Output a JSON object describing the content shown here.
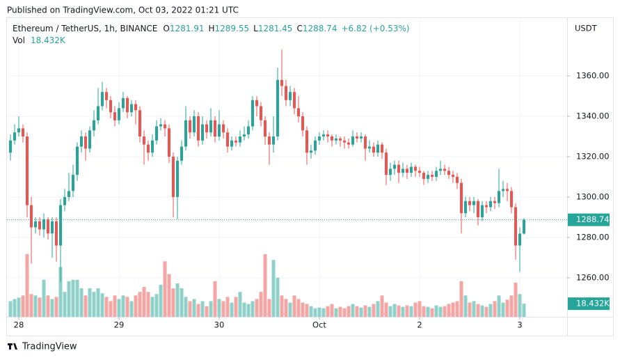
{
  "chart_data": {
    "type": "candlestick",
    "publisher": "Published on TradingView.com, Oct 03, 2022 01:21 UTC",
    "title": "Ethereum / TetherUS, 1h, BINANCE",
    "ohlc_keys": [
      "O",
      "H",
      "L",
      "C"
    ],
    "change": "+6.82 (+0.53%)",
    "volume_title": "Vol",
    "volume_label": "18.432K",
    "y_axis_label": "USDT",
    "brand": "TradingView",
    "up_color": "#26a69a",
    "down_color": "#ef5350",
    "volume_up_color": "#8fd1c9",
    "volume_down_color": "#f3a6a4",
    "grid": true,
    "ylim": [
      1240.7,
      1385.5
    ],
    "yticks": [
      {
        "value": 1260,
        "label": "1260.00"
      },
      {
        "value": 1280,
        "label": "1280.00"
      },
      {
        "value": 1300,
        "label": "1300.00"
      },
      {
        "value": 1320,
        "label": "1320.00"
      },
      {
        "value": 1340,
        "label": "1340.00"
      },
      {
        "value": 1360,
        "label": "1360.00"
      }
    ],
    "categories": [
      null,
      null,
      "28",
      null,
      null,
      null,
      null,
      null,
      null,
      null,
      null,
      null,
      null,
      null,
      null,
      null,
      null,
      null,
      null,
      null,
      null,
      null,
      null,
      null,
      null,
      null,
      "29",
      null,
      null,
      null,
      null,
      null,
      null,
      null,
      null,
      null,
      null,
      null,
      null,
      null,
      null,
      null,
      null,
      null,
      null,
      null,
      null,
      null,
      null,
      null,
      "30",
      null,
      null,
      null,
      null,
      null,
      null,
      null,
      null,
      null,
      null,
      null,
      null,
      null,
      null,
      null,
      null,
      null,
      null,
      null,
      null,
      null,
      null,
      null,
      "Oct",
      null,
      null,
      null,
      null,
      null,
      null,
      null,
      null,
      null,
      null,
      null,
      null,
      null,
      null,
      null,
      null,
      null,
      null,
      null,
      null,
      null,
      null,
      null,
      "2",
      null,
      null,
      null,
      null,
      null,
      null,
      null,
      null,
      null,
      null,
      null,
      null,
      null,
      null,
      null,
      null,
      null,
      null,
      null,
      null,
      null,
      null,
      null,
      "3",
      null
    ],
    "open": [
      1322,
      1328,
      1332,
      1334,
      1330,
      1296,
      1285,
      1288,
      1284,
      1289,
      1282,
      1288,
      1276,
      1296,
      1300,
      1303,
      1311,
      1325,
      1330,
      1324,
      1333,
      1338,
      1345,
      1352,
      1348,
      1342,
      1338,
      1344,
      1349,
      1342,
      1346,
      1343,
      1330,
      1326,
      1322,
      1328,
      1335,
      1336,
      1334,
      1320,
      1300,
      1318,
      1325,
      1338,
      1332,
      1340,
      1328,
      1336,
      1332,
      1338,
      1330,
      1336,
      1332,
      1325,
      1328,
      1327,
      1330,
      1331,
      1335,
      1348,
      1345,
      1338,
      1330,
      1326,
      1330,
      1358,
      1355,
      1348,
      1352,
      1344,
      1340,
      1333,
      1322,
      1323,
      1328,
      1330,
      1331,
      1330,
      1328,
      1329,
      1328,
      1327,
      1326,
      1330,
      1329,
      1330,
      1324,
      1325,
      1322,
      1326,
      1322,
      1311,
      1314,
      1316,
      1312,
      1314,
      1312,
      1315,
      1313,
      1312,
      1309,
      1311,
      1310,
      1313,
      1314,
      1313,
      1311,
      1310,
      1307,
      1292,
      1298,
      1296,
      1298,
      1290,
      1296,
      1295,
      1298,
      1297,
      1303,
      1304,
      1303,
      1295,
      1276,
      1281.91
    ],
    "high": [
      1331,
      1336,
      1340,
      1336,
      1332,
      1300,
      1290,
      1290,
      1292,
      1290,
      1290,
      1290,
      1299,
      1304,
      1312,
      1316,
      1327,
      1333,
      1332,
      1335,
      1343,
      1354,
      1357,
      1354,
      1350,
      1345,
      1347,
      1352,
      1350,
      1348,
      1348,
      1345,
      1333,
      1328,
      1331,
      1338,
      1339,
      1338,
      1336,
      1322,
      1320,
      1328,
      1345,
      1340,
      1343,
      1342,
      1340,
      1338,
      1344,
      1340,
      1343,
      1338,
      1334,
      1330,
      1330,
      1333,
      1335,
      1338,
      1350,
      1350,
      1347,
      1340,
      1332,
      1340,
      1364,
      1373,
      1358,
      1355,
      1354,
      1350,
      1342,
      1335,
      1326,
      1330,
      1332,
      1333,
      1333,
      1331,
      1331,
      1330,
      1330,
      1329,
      1333,
      1332,
      1332,
      1331,
      1328,
      1327,
      1328,
      1327,
      1324,
      1317,
      1318,
      1318,
      1317,
      1316,
      1317,
      1316,
      1315,
      1313,
      1313,
      1313,
      1315,
      1318,
      1316,
      1315,
      1313,
      1312,
      1309,
      1300,
      1300,
      1300,
      1299,
      1298,
      1298,
      1300,
      1300,
      1314,
      1308,
      1307,
      1305,
      1297,
      1285,
      1289.55
    ],
    "low": [
      1318,
      1326,
      1330,
      1327,
      1290,
      1267,
      1282,
      1281,
      1280,
      1279,
      1270,
      1268,
      1258,
      1293,
      1298,
      1300,
      1308,
      1322,
      1318,
      1322,
      1330,
      1336,
      1343,
      1344,
      1339,
      1335,
      1336,
      1342,
      1339,
      1340,
      1336,
      1327,
      1316,
      1318,
      1320,
      1326,
      1333,
      1330,
      1317,
      1290,
      1289,
      1316,
      1323,
      1329,
      1330,
      1325,
      1326,
      1329,
      1330,
      1327,
      1328,
      1329,
      1322,
      1323,
      1325,
      1325,
      1328,
      1329,
      1333,
      1340,
      1335,
      1326,
      1316,
      1322,
      1328,
      1350,
      1345,
      1345,
      1341,
      1337,
      1330,
      1316,
      1319,
      1321,
      1326,
      1328,
      1327,
      1325,
      1326,
      1325,
      1324,
      1324,
      1325,
      1327,
      1327,
      1318,
      1322,
      1320,
      1320,
      1319,
      1306,
      1308,
      1311,
      1307,
      1310,
      1309,
      1310,
      1310,
      1310,
      1306,
      1307,
      1308,
      1308,
      1311,
      1311,
      1309,
      1307,
      1304,
      1282,
      1290,
      1293,
      1292,
      1286,
      1288,
      1292,
      1293,
      1294,
      1295,
      1300,
      1298,
      1292,
      1269,
      1263,
      1281.45
    ],
    "close": [
      1328,
      1332,
      1334,
      1330,
      1296,
      1285,
      1288,
      1284,
      1289,
      1282,
      1288,
      1276,
      1296,
      1300,
      1303,
      1311,
      1325,
      1330,
      1324,
      1333,
      1338,
      1345,
      1352,
      1348,
      1342,
      1338,
      1344,
      1349,
      1342,
      1346,
      1343,
      1330,
      1326,
      1322,
      1328,
      1335,
      1336,
      1334,
      1320,
      1300,
      1318,
      1325,
      1338,
      1332,
      1340,
      1328,
      1336,
      1332,
      1338,
      1330,
      1336,
      1332,
      1325,
      1328,
      1327,
      1330,
      1331,
      1335,
      1348,
      1345,
      1338,
      1330,
      1326,
      1330,
      1358,
      1355,
      1348,
      1352,
      1344,
      1340,
      1333,
      1322,
      1323,
      1328,
      1330,
      1331,
      1330,
      1328,
      1329,
      1328,
      1327,
      1326,
      1330,
      1329,
      1330,
      1324,
      1325,
      1322,
      1326,
      1322,
      1311,
      1314,
      1316,
      1312,
      1314,
      1312,
      1315,
      1313,
      1312,
      1309,
      1311,
      1310,
      1313,
      1314,
      1313,
      1311,
      1310,
      1307,
      1292,
      1298,
      1296,
      1298,
      1290,
      1296,
      1295,
      1298,
      1297,
      1303,
      1304,
      1303,
      1295,
      1276,
      1281.91,
      1288.74
    ],
    "volume": [
      22000,
      25000,
      27000,
      30000,
      88000,
      32000,
      30000,
      27000,
      52000,
      30000,
      25000,
      28000,
      70000,
      35000,
      50000,
      52000,
      52000,
      40000,
      30000,
      40000,
      35000,
      40000,
      33000,
      28000,
      22000,
      30000,
      25000,
      30000,
      28000,
      22000,
      30000,
      35000,
      42000,
      35000,
      28000,
      32000,
      45000,
      78000,
      60000,
      40000,
      47000,
      40000,
      28000,
      22000,
      25000,
      18000,
      22000,
      15000,
      22000,
      50000,
      25000,
      22000,
      28000,
      20000,
      28000,
      35000,
      20000,
      18000,
      22000,
      25000,
      35000,
      88000,
      25000,
      80000,
      55000,
      30000,
      25000,
      20000,
      30000,
      25000,
      20000,
      18000,
      15000,
      12000,
      13000,
      12000,
      15000,
      18000,
      12000,
      14000,
      12000,
      15000,
      18000,
      15000,
      13000,
      16000,
      14000,
      18000,
      22000,
      30000,
      20000,
      15000,
      18000,
      16000,
      14000,
      16000,
      15000,
      20000,
      22000,
      15000,
      14000,
      12000,
      16000,
      14000,
      15000,
      18000,
      20000,
      22000,
      50000,
      30000,
      20000,
      22000,
      18000,
      16000,
      14000,
      18000,
      22000,
      30000,
      20000,
      24000,
      30000,
      48000,
      32000,
      18432
    ]
  }
}
